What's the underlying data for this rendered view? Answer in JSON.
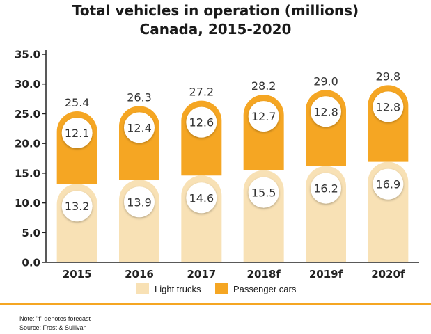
{
  "chart_data": {
    "type": "bar",
    "stacked": true,
    "title": "Total vehicles in operation (millions)",
    "subtitle": "Canada, 2015-2020",
    "categories": [
      "2015",
      "2016",
      "2017",
      "2018f",
      "2019f",
      "2020f"
    ],
    "series": [
      {
        "name": "Light trucks",
        "values": [
          13.2,
          13.9,
          14.6,
          15.5,
          16.2,
          16.9
        ],
        "color": "#f8e1b5"
      },
      {
        "name": "Passenger cars",
        "values": [
          12.1,
          12.4,
          12.6,
          12.7,
          12.8,
          12.8
        ],
        "color": "#f5a623"
      }
    ],
    "totals": [
      25.4,
      26.3,
      27.2,
      28.2,
      29.0,
      29.8
    ],
    "y_ticks": [
      "35.0",
      "30.0",
      "25.0",
      "20.0",
      "15.0",
      "10.0",
      "5.0",
      "0.0"
    ],
    "ylim": [
      0,
      35
    ],
    "legend_position": "bottom",
    "grid": false
  },
  "notes": {
    "line1": "Note: \"f\" denotes forecast",
    "line2": "Source: Frost & Sullivan"
  },
  "colors": {
    "accent": "#f5a623",
    "light": "#f8e1b5",
    "axis": "#222222",
    "label_text": "#333333"
  }
}
